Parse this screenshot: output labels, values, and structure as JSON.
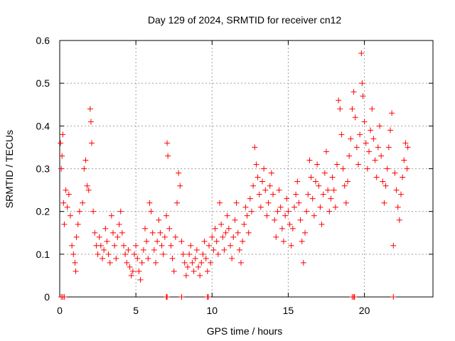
{
  "chart_data": {
    "type": "scatter",
    "title": "Day 129 of 2024, SRMTID for receiver cn12",
    "xlabel": "GPS time / hours",
    "ylabel": "SRMTID / TECUs",
    "xlim": [
      0,
      24.5
    ],
    "ylim": [
      0,
      0.6
    ],
    "xticks": [
      0,
      5,
      10,
      15,
      20
    ],
    "xtick_labels": [
      "0",
      "5",
      "10",
      "15",
      "20"
    ],
    "yticks": [
      0,
      0.1,
      0.2,
      0.3,
      0.4,
      0.5,
      0.6
    ],
    "ytick_labels": [
      "0",
      "0.1",
      "0.2",
      "0.3",
      "0.4",
      "0.5",
      "0.6"
    ],
    "grid": true,
    "legend": "none",
    "marker": "plus",
    "series": [
      {
        "name": "SRMTID",
        "color": "#ff0000",
        "points": [
          [
            0.05,
            0.36
          ],
          [
            0.1,
            0.3
          ],
          [
            0.15,
            0.33
          ],
          [
            0.2,
            0.38
          ],
          [
            0.25,
            0.22
          ],
          [
            0.3,
            0.17
          ],
          [
            0.4,
            0.25
          ],
          [
            0.5,
            0.21
          ],
          [
            0.6,
            0.24
          ],
          [
            0.7,
            0.19
          ],
          [
            0.8,
            0.12
          ],
          [
            0.9,
            0.1
          ],
          [
            1.0,
            0.08
          ],
          [
            1.05,
            0.06
          ],
          [
            1.1,
            0.14
          ],
          [
            1.2,
            0.17
          ],
          [
            1.3,
            0.2
          ],
          [
            1.5,
            0.22
          ],
          [
            1.6,
            0.3
          ],
          [
            1.7,
            0.32
          ],
          [
            1.8,
            0.26
          ],
          [
            1.9,
            0.25
          ],
          [
            2.0,
            0.44
          ],
          [
            2.05,
            0.41
          ],
          [
            2.1,
            0.36
          ],
          [
            2.2,
            0.2
          ],
          [
            2.3,
            0.15
          ],
          [
            2.4,
            0.12
          ],
          [
            2.5,
            0.1
          ],
          [
            2.6,
            0.14
          ],
          [
            2.7,
            0.12
          ],
          [
            2.8,
            0.09
          ],
          [
            2.9,
            0.11
          ],
          [
            3.0,
            0.16
          ],
          [
            3.1,
            0.13
          ],
          [
            3.2,
            0.1
          ],
          [
            3.3,
            0.08
          ],
          [
            3.4,
            0.19
          ],
          [
            3.5,
            0.15
          ],
          [
            3.6,
            0.12
          ],
          [
            3.7,
            0.09
          ],
          [
            3.8,
            0.14
          ],
          [
            3.9,
            0.17
          ],
          [
            4.0,
            0.2
          ],
          [
            4.1,
            0.15
          ],
          [
            4.2,
            0.12
          ],
          [
            4.3,
            0.1
          ],
          [
            4.4,
            0.08
          ],
          [
            4.5,
            0.11
          ],
          [
            4.6,
            0.07
          ],
          [
            4.7,
            0.05
          ],
          [
            4.8,
            0.06
          ],
          [
            4.9,
            0.1
          ],
          [
            5.0,
            0.12
          ],
          [
            5.1,
            0.09
          ],
          [
            5.2,
            0.06
          ],
          [
            5.3,
            0.04
          ],
          [
            5.4,
            0.08
          ],
          [
            5.5,
            0.11
          ],
          [
            5.6,
            0.16
          ],
          [
            5.7,
            0.13
          ],
          [
            5.8,
            0.09
          ],
          [
            5.9,
            0.22
          ],
          [
            6.0,
            0.2
          ],
          [
            6.1,
            0.15
          ],
          [
            6.2,
            0.11
          ],
          [
            6.3,
            0.08
          ],
          [
            6.4,
            0.13
          ],
          [
            6.5,
            0.18
          ],
          [
            6.6,
            0.15
          ],
          [
            6.7,
            0.12
          ],
          [
            6.8,
            0.1
          ],
          [
            6.9,
            0.14
          ],
          [
            7.0,
            0.19
          ],
          [
            7.05,
            0.36
          ],
          [
            7.1,
            0.33
          ],
          [
            7.2,
            0.16
          ],
          [
            7.3,
            0.12
          ],
          [
            7.4,
            0.09
          ],
          [
            7.5,
            0.06
          ],
          [
            7.6,
            0.14
          ],
          [
            7.7,
            0.22
          ],
          [
            7.8,
            0.29
          ],
          [
            7.9,
            0.26
          ],
          [
            8.0,
            0.13
          ],
          [
            8.1,
            0.1
          ],
          [
            8.2,
            0.08
          ],
          [
            8.3,
            0.05
          ],
          [
            8.4,
            0.07
          ],
          [
            8.5,
            0.1
          ],
          [
            8.6,
            0.12
          ],
          [
            8.7,
            0.08
          ],
          [
            8.8,
            0.06
          ],
          [
            8.9,
            0.09
          ],
          [
            9.0,
            0.11
          ],
          [
            9.1,
            0.07
          ],
          [
            9.2,
            0.05
          ],
          [
            9.3,
            0.08
          ],
          [
            9.4,
            0.1
          ],
          [
            9.5,
            0.13
          ],
          [
            9.6,
            0.09
          ],
          [
            9.7,
            0.06
          ],
          [
            9.8,
            0.12
          ],
          [
            9.9,
            0.08
          ],
          [
            10.0,
            0.14
          ],
          [
            10.1,
            0.11
          ],
          [
            10.2,
            0.16
          ],
          [
            10.3,
            0.13
          ],
          [
            10.4,
            0.1
          ],
          [
            10.5,
            0.22
          ],
          [
            10.6,
            0.17
          ],
          [
            10.7,
            0.14
          ],
          [
            10.8,
            0.11
          ],
          [
            10.9,
            0.15
          ],
          [
            11.0,
            0.19
          ],
          [
            11.1,
            0.16
          ],
          [
            11.2,
            0.12
          ],
          [
            11.3,
            0.09
          ],
          [
            11.4,
            0.14
          ],
          [
            11.5,
            0.18
          ],
          [
            11.6,
            0.22
          ],
          [
            11.7,
            0.15
          ],
          [
            11.8,
            0.11
          ],
          [
            11.9,
            0.08
          ],
          [
            12.0,
            0.13
          ],
          [
            12.1,
            0.17
          ],
          [
            12.2,
            0.21
          ],
          [
            12.3,
            0.19
          ],
          [
            12.4,
            0.15
          ],
          [
            12.5,
            0.23
          ],
          [
            12.6,
            0.2
          ],
          [
            12.7,
            0.26
          ],
          [
            12.8,
            0.35
          ],
          [
            12.9,
            0.31
          ],
          [
            13.0,
            0.28
          ],
          [
            13.1,
            0.24
          ],
          [
            13.2,
            0.21
          ],
          [
            13.3,
            0.27
          ],
          [
            13.4,
            0.3
          ],
          [
            13.5,
            0.25
          ],
          [
            13.6,
            0.19
          ],
          [
            13.7,
            0.22
          ],
          [
            13.8,
            0.26
          ],
          [
            13.9,
            0.29
          ],
          [
            14.0,
            0.24
          ],
          [
            14.1,
            0.18
          ],
          [
            14.2,
            0.14
          ],
          [
            14.3,
            0.2
          ],
          [
            14.4,
            0.25
          ],
          [
            14.5,
            0.21
          ],
          [
            14.6,
            0.16
          ],
          [
            14.7,
            0.13
          ],
          [
            14.8,
            0.19
          ],
          [
            14.9,
            0.23
          ],
          [
            15.0,
            0.2
          ],
          [
            15.1,
            0.17
          ],
          [
            15.2,
            0.12
          ],
          [
            15.3,
            0.16
          ],
          [
            15.4,
            0.21
          ],
          [
            15.5,
            0.24
          ],
          [
            15.6,
            0.27
          ],
          [
            15.7,
            0.22
          ],
          [
            15.8,
            0.18
          ],
          [
            15.9,
            0.13
          ],
          [
            16.0,
            0.08
          ],
          [
            16.1,
            0.15
          ],
          [
            16.2,
            0.2
          ],
          [
            16.3,
            0.24
          ],
          [
            16.4,
            0.32
          ],
          [
            16.5,
            0.28
          ],
          [
            16.6,
            0.23
          ],
          [
            16.7,
            0.19
          ],
          [
            16.8,
            0.27
          ],
          [
            16.9,
            0.31
          ],
          [
            17.0,
            0.26
          ],
          [
            17.1,
            0.21
          ],
          [
            17.2,
            0.17
          ],
          [
            17.3,
            0.24
          ],
          [
            17.4,
            0.29
          ],
          [
            17.5,
            0.34
          ],
          [
            17.6,
            0.25
          ],
          [
            17.7,
            0.2
          ],
          [
            17.8,
            0.23
          ],
          [
            17.9,
            0.28
          ],
          [
            18.0,
            0.25
          ],
          [
            18.1,
            0.21
          ],
          [
            18.2,
            0.31
          ],
          [
            18.3,
            0.46
          ],
          [
            18.4,
            0.44
          ],
          [
            18.5,
            0.38
          ],
          [
            18.6,
            0.3
          ],
          [
            18.7,
            0.26
          ],
          [
            18.8,
            0.22
          ],
          [
            18.9,
            0.27
          ],
          [
            19.0,
            0.33
          ],
          [
            19.1,
            0.37
          ],
          [
            19.2,
            0.44
          ],
          [
            19.3,
            0.48
          ],
          [
            19.4,
            0.42
          ],
          [
            19.5,
            0.35
          ],
          [
            19.6,
            0.31
          ],
          [
            19.7,
            0.38
          ],
          [
            19.8,
            0.57
          ],
          [
            19.85,
            0.5
          ],
          [
            19.9,
            0.47
          ],
          [
            20.0,
            0.41
          ],
          [
            20.1,
            0.36
          ],
          [
            20.2,
            0.3
          ],
          [
            20.3,
            0.34
          ],
          [
            20.4,
            0.39
          ],
          [
            20.5,
            0.44
          ],
          [
            20.6,
            0.37
          ],
          [
            20.7,
            0.32
          ],
          [
            20.8,
            0.28
          ],
          [
            20.9,
            0.35
          ],
          [
            21.0,
            0.4
          ],
          [
            21.1,
            0.33
          ],
          [
            21.2,
            0.27
          ],
          [
            21.3,
            0.22
          ],
          [
            21.4,
            0.26
          ],
          [
            21.5,
            0.3
          ],
          [
            21.6,
            0.35
          ],
          [
            21.7,
            0.39
          ],
          [
            21.8,
            0.43
          ],
          [
            21.9,
            0.12
          ],
          [
            22.0,
            0.29
          ],
          [
            22.1,
            0.25
          ],
          [
            22.2,
            0.21
          ],
          [
            22.3,
            0.18
          ],
          [
            22.4,
            0.24
          ],
          [
            22.5,
            0.28
          ],
          [
            22.6,
            0.32
          ],
          [
            22.7,
            0.36
          ],
          [
            22.8,
            0.3
          ],
          [
            22.85,
            0.35
          ],
          [
            0.1,
            0.0
          ],
          [
            0.2,
            0.0
          ],
          [
            0.3,
            0.0
          ],
          [
            7.0,
            0.0
          ],
          [
            7.05,
            0.0
          ],
          [
            8.0,
            0.0
          ],
          [
            9.7,
            0.0
          ],
          [
            9.75,
            0.0
          ],
          [
            19.2,
            0.0
          ],
          [
            19.3,
            0.0
          ],
          [
            19.35,
            0.0
          ],
          [
            21.9,
            0.0
          ]
        ]
      }
    ]
  }
}
